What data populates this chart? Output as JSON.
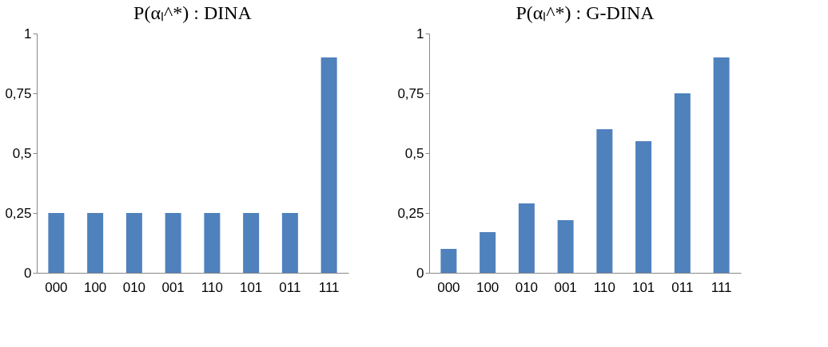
{
  "chart_data": [
    {
      "type": "bar",
      "title": "P(αₗ^*) : DINA",
      "categories": [
        "000",
        "100",
        "010",
        "001",
        "110",
        "101",
        "011",
        "111"
      ],
      "values": [
        0.25,
        0.25,
        0.25,
        0.25,
        0.25,
        0.25,
        0.25,
        0.9
      ],
      "color": "#4f81bd",
      "ylim": [
        0,
        1
      ],
      "yticks": [
        0,
        {
          "value": 0.25,
          "label": "0,25"
        },
        {
          "value": 0.5,
          "label": "0,5"
        },
        {
          "value": 0.75,
          "label": "0,75"
        },
        1
      ],
      "grid": false
    },
    {
      "type": "bar",
      "title": "P(αₗ^*) : G-DINA",
      "categories": [
        "000",
        "100",
        "010",
        "001",
        "110",
        "101",
        "011",
        "111"
      ],
      "values": [
        0.1,
        0.17,
        0.29,
        0.22,
        0.6,
        0.55,
        0.75,
        0.9
      ],
      "color": "#4f81bd",
      "ylim": [
        0,
        1
      ],
      "yticks": [
        0,
        {
          "value": 0.25,
          "label": "0,25"
        },
        {
          "value": 0.5,
          "label": "0,5"
        },
        {
          "value": 0.75,
          "label": "0,75"
        },
        1
      ],
      "grid": false
    }
  ]
}
